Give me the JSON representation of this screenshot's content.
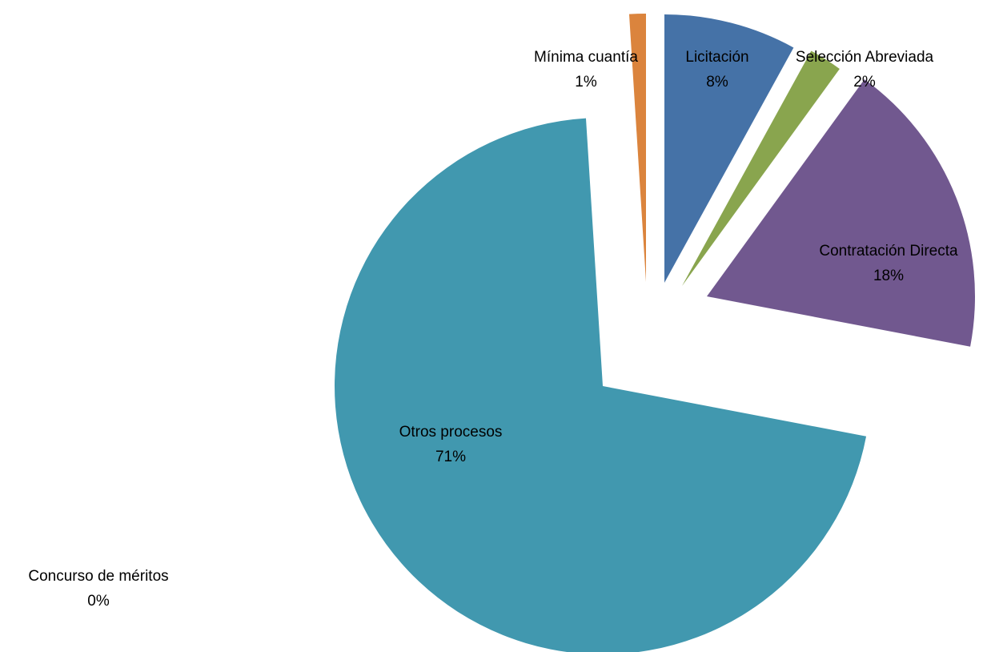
{
  "chart_data": {
    "type": "pie",
    "slices": [
      {
        "label": "Licitación",
        "value": 8,
        "pct_label": "8%",
        "color": "#4572a7"
      },
      {
        "label": "Selección Abreviada",
        "value": 2,
        "pct_label": "2%",
        "color": "#89a54e"
      },
      {
        "label": "Contratación Directa",
        "value": 18,
        "pct_label": "18%",
        "color": "#71588f"
      },
      {
        "label": "Otros procesos",
        "value": 71,
        "pct_label": "71%",
        "color": "#4198af"
      },
      {
        "label": "Concurso de méritos",
        "value": 0,
        "pct_label": "0%",
        "color": "#4572a7"
      },
      {
        "label": "Mínima cuantía",
        "value": 1,
        "pct_label": "1%",
        "color": "#db843d"
      }
    ],
    "legend": "none"
  }
}
